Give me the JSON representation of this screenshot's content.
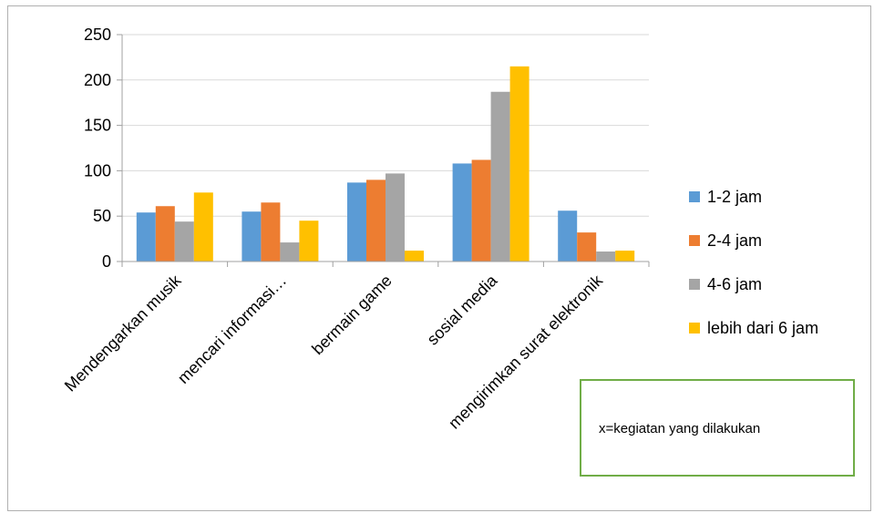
{
  "chart_data": {
    "type": "bar",
    "categories": [
      "Mendengarkan musik",
      "mencari informasi…",
      "bermain game",
      "sosial media",
      "mengirimkan surat elektronik"
    ],
    "series": [
      {
        "name": "1-2 jam",
        "color": "#5b9bd5",
        "values": [
          54,
          55,
          87,
          108,
          56
        ]
      },
      {
        "name": "2-4 jam",
        "color": "#ed7d31",
        "values": [
          61,
          65,
          90,
          112,
          32
        ]
      },
      {
        "name": "4-6 jam",
        "color": "#a5a5a5",
        "values": [
          44,
          21,
          97,
          187,
          11
        ]
      },
      {
        "name": "lebih dari 6 jam",
        "color": "#ffc000",
        "values": [
          76,
          45,
          12,
          215,
          12
        ]
      }
    ],
    "ylim": [
      0,
      250
    ],
    "yticks": [
      0,
      50,
      100,
      150,
      200,
      250
    ],
    "grid": true,
    "legend_position": "right"
  },
  "note": {
    "text": "x=kegiatan yang dilakukan"
  }
}
